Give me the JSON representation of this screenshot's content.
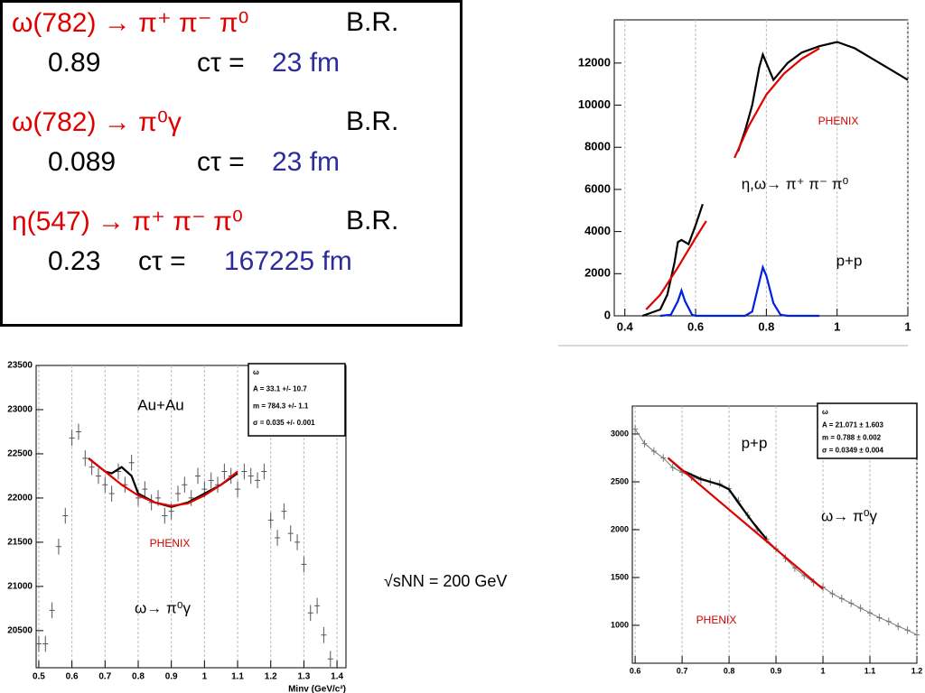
{
  "decays": [
    {
      "process": "ω(782) → π⁺ π⁻ π⁰",
      "br_label": "B.R.",
      "br": "0.89",
      "ctau_label": "cτ = ",
      "ctau": "23 fm"
    },
    {
      "process": "ω(782) → π⁰γ",
      "br_label": "B.R.",
      "br": "0.089",
      "ctau_label": "cτ = ",
      "ctau": "23 fm"
    },
    {
      "process": "η(547) → π⁺ π⁻ π⁰",
      "br_label": "B.R.",
      "br": "0.23",
      "ctau_label": "cτ = ",
      "ctau": "167225 fm"
    }
  ],
  "energy_label": "√sNN = 200 GeV",
  "chart_data": [
    {
      "type": "line",
      "xlim": [
        0.37,
        1.2
      ],
      "ylim": [
        0,
        14050
      ],
      "xticks": [
        0.4,
        0.6,
        0.8,
        1,
        {
          "value": 1.2,
          "label": "1"
        }
      ],
      "yticks": [
        0,
        2000,
        4000,
        6000,
        8000,
        10000,
        12000
      ],
      "grid": true,
      "annotations": [
        {
          "text": "PHENIX",
          "color": "#d00000"
        },
        {
          "text": "η,ω→ π⁺ π⁻ π⁰",
          "color": "#000000"
        },
        {
          "text": "p+p",
          "color": "#000000"
        }
      ],
      "series": [
        {
          "color": "#000000",
          "x": [
            0.45,
            0.5,
            0.52,
            0.54,
            0.55,
            0.56,
            0.58,
            0.6,
            0.62,
            0.64,
            0.72,
            0.74,
            0.76,
            0.78,
            0.79,
            0.8,
            0.82,
            0.84,
            0.86,
            0.9,
            0.95,
            1.0,
            1.05,
            1.1,
            1.15,
            1.2
          ],
          "values": [
            0,
            300,
            1000,
            2500,
            3500,
            3600,
            3400,
            4300,
            5300,
            null,
            7800,
            8800,
            10000,
            11800,
            12400,
            12000,
            11200,
            11600,
            12000,
            12500,
            12800,
            13000,
            12700,
            12200,
            11700,
            11200
          ]
        },
        {
          "color": "#e00000",
          "x": [
            0.46,
            0.5,
            0.55,
            0.6,
            0.63,
            0.67,
            0.71,
            0.75,
            0.8,
            0.85,
            0.9,
            0.95
          ],
          "values": [
            300,
            1000,
            2300,
            3700,
            4500,
            null,
            7500,
            9000,
            10500,
            11500,
            12200,
            12700
          ]
        },
        {
          "color": "#0020e0",
          "x": [
            0.5,
            0.53,
            0.55,
            0.56,
            0.57,
            0.59,
            0.6,
            0.74,
            0.76,
            0.78,
            0.79,
            0.8,
            0.82,
            0.84,
            0.86,
            0.95
          ],
          "values": [
            0,
            50,
            700,
            1200,
            700,
            50,
            0,
            0,
            200,
            1600,
            2300,
            1900,
            600,
            50,
            0,
            0
          ]
        }
      ]
    },
    {
      "type": "line",
      "xlim": [
        0.492,
        1.427
      ],
      "ylim": [
        20080,
        23500
      ],
      "xticks": [
        0.5,
        0.6,
        0.7,
        0.8,
        0.9,
        1,
        1.1,
        1.2,
        1.3,
        1.4
      ],
      "yticks": [
        20500,
        21000,
        21500,
        22000,
        22500,
        23000,
        23500
      ],
      "grid": true,
      "xlabel": "Minv (GeV/c²)",
      "stats": [
        "ω",
        "A = 33.1 +/- 10.7",
        "m = 784.3 +/- 1.1",
        "σ = 0.035 +/- 0.001"
      ],
      "annotations": [
        {
          "text": "Au+Au",
          "color": "#000000"
        },
        {
          "text": "PHENIX",
          "color": "#d00000"
        },
        {
          "text": "ω→ π⁰γ",
          "color": "#000000"
        }
      ],
      "series": [
        {
          "color": "#555555",
          "line": false,
          "x": [
            0.5,
            0.52,
            0.54,
            0.56,
            0.58,
            0.6,
            0.62,
            0.64,
            0.66,
            0.68,
            0.7,
            0.72,
            0.74,
            0.76,
            0.78,
            0.8,
            0.82,
            0.84,
            0.86,
            0.88,
            0.9,
            0.92,
            0.94,
            0.96,
            0.98,
            1.0,
            1.02,
            1.04,
            1.06,
            1.08,
            1.1,
            1.12,
            1.14,
            1.16,
            1.18,
            1.2,
            1.22,
            1.24,
            1.26,
            1.28,
            1.3,
            1.32,
            1.34,
            1.36,
            1.38
          ],
          "values": [
            20350,
            20350,
            20730,
            21450,
            21800,
            22680,
            22750,
            22450,
            22350,
            22250,
            22150,
            22050,
            22300,
            22150,
            22400,
            22000,
            22100,
            21950,
            22000,
            21800,
            21850,
            22050,
            22150,
            22000,
            22250,
            22100,
            22200,
            22150,
            22300,
            22250,
            22100,
            22300,
            22250,
            22200,
            22300,
            21750,
            21550,
            21850,
            21600,
            21500,
            21250,
            20700,
            20780,
            20450,
            20180
          ],
          "yerr": [
            90,
            90,
            90,
            90,
            90,
            90,
            90,
            90,
            90,
            90,
            90,
            90,
            90,
            90,
            90,
            90,
            90,
            90,
            90,
            90,
            90,
            90,
            90,
            90,
            90,
            90,
            90,
            90,
            90,
            90,
            90,
            90,
            90,
            90,
            90,
            90,
            90,
            90,
            90,
            90,
            90,
            90,
            90,
            90,
            90
          ]
        },
        {
          "color": "#000000",
          "x": [
            0.65,
            0.7,
            0.72,
            0.75,
            0.78,
            0.8,
            0.85,
            0.9,
            0.95,
            1.0,
            1.05,
            1.1
          ],
          "values": [
            22450,
            22300,
            22280,
            22350,
            22250,
            22050,
            21950,
            21900,
            21950,
            22050,
            22150,
            22280
          ]
        },
        {
          "color": "#e00000",
          "x": [
            0.65,
            0.7,
            0.75,
            0.8,
            0.85,
            0.9,
            0.95,
            1.0,
            1.05,
            1.1
          ],
          "values": [
            22450,
            22300,
            22150,
            22030,
            21950,
            21910,
            21940,
            22030,
            22150,
            22300
          ]
        }
      ]
    },
    {
      "type": "line",
      "xlim": [
        0.594,
        1.2
      ],
      "ylim": [
        604,
        3292
      ],
      "xticks": [
        0.6,
        0.7,
        0.8,
        0.9,
        1,
        1.1,
        1.2
      ],
      "yticks": [
        1000,
        1500,
        2000,
        2500,
        3000
      ],
      "grid": true,
      "stats": [
        "ω",
        "A = 21.071 ± 1.603",
        "m = 0.788 ± 0.002",
        "σ = 0.0349 ± 0.004"
      ],
      "annotations": [
        {
          "text": "p+p",
          "color": "#000000"
        },
        {
          "text": "ω→ π⁰γ",
          "color": "#000000"
        },
        {
          "text": "PHENIX",
          "color": "#d00000"
        }
      ],
      "series": [
        {
          "color": "#777777",
          "line": true,
          "x": [
            0.6,
            0.62,
            0.64,
            0.66,
            0.68,
            0.7,
            0.72,
            0.74,
            0.76,
            0.78,
            0.8,
            0.82,
            0.84,
            0.86,
            0.88,
            0.9,
            0.92,
            0.94,
            0.96,
            0.98,
            1.0,
            1.02,
            1.04,
            1.06,
            1.08,
            1.1,
            1.12,
            1.14,
            1.16,
            1.18,
            1.2
          ],
          "values": [
            3050,
            2900,
            2820,
            2750,
            2650,
            2600,
            2550,
            2520,
            2500,
            2480,
            2430,
            2300,
            2150,
            2000,
            1900,
            1800,
            1700,
            1600,
            1520,
            1450,
            1400,
            1330,
            1280,
            1230,
            1180,
            1130,
            1080,
            1040,
            990,
            950,
            900
          ],
          "yerr": [
            40,
            40,
            40,
            40,
            40,
            40,
            40,
            40,
            40,
            40,
            40,
            40,
            40,
            40,
            40,
            40,
            40,
            40,
            40,
            40,
            40,
            40,
            40,
            40,
            40,
            40,
            40,
            40,
            40,
            40,
            40
          ]
        },
        {
          "color": "#000000",
          "x": [
            0.67,
            0.7,
            0.74,
            0.78,
            0.8,
            0.82,
            0.85,
            0.88
          ],
          "values": [
            2750,
            2620,
            2530,
            2470,
            2420,
            2280,
            2080,
            1900
          ]
        },
        {
          "color": "#e00000",
          "x": [
            0.67,
            1.0
          ],
          "values": [
            2750,
            1380
          ]
        }
      ]
    }
  ]
}
